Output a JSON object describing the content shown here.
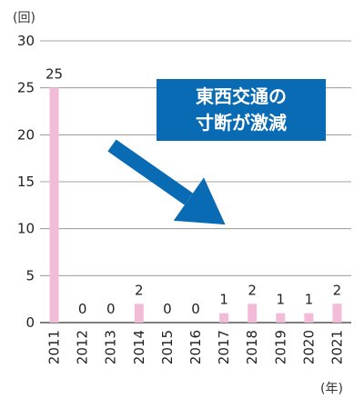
{
  "chart_data": {
    "type": "bar",
    "categories": [
      "2011",
      "2012",
      "2013",
      "2014",
      "2015",
      "2016",
      "2017",
      "2018",
      "2019",
      "2020",
      "2021"
    ],
    "values": [
      25,
      0,
      0,
      2,
      0,
      0,
      1,
      2,
      1,
      1,
      2
    ],
    "y_unit": "(回)",
    "x_unit": "(年)",
    "ylim": [
      0,
      30
    ],
    "yticks": [
      0,
      5,
      10,
      15,
      20,
      25,
      30
    ],
    "grid": true,
    "annotation": {
      "line1": "東西交通の",
      "line2": "寸断が激減"
    }
  },
  "colors": {
    "bar": "#f2bcd8",
    "grid": "#888888",
    "axis": "#333333",
    "callout_bg": "#0a6bb5",
    "arrow": "#0a6bb5"
  }
}
